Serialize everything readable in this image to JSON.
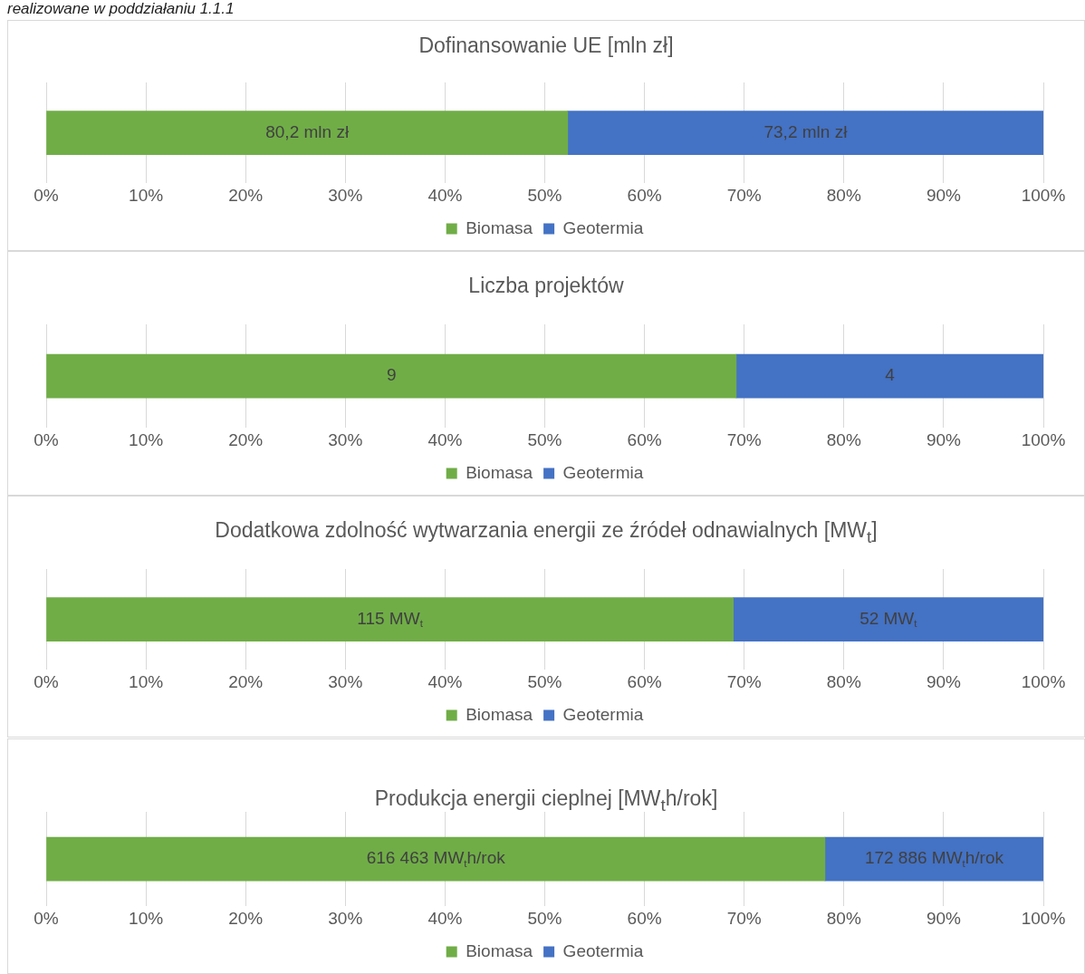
{
  "chart_data": [
    {
      "type": "bar",
      "title": "Dofinansowanie UE [mln zł]",
      "annotations": [
        "realizowane w poddziałaniu 1.1.1",
        "80,2 mln zł",
        "73,2 mln zł"
      ],
      "categories": [
        null
      ],
      "orientation": "horizontal",
      "stacked": true,
      "series": [
        {
          "name": "Biomasa",
          "color": "#70ad47",
          "values": [
            52.3
          ]
        },
        {
          "name": "Geotermia",
          "color": "#4472c4",
          "values": [
            47.7
          ]
        }
      ],
      "xlim": [
        0,
        100
      ],
      "xticks": [
        {
          "value": 0,
          "label": "0%"
        },
        {
          "value": 10,
          "label": "10%"
        },
        {
          "value": 20,
          "label": "20%"
        },
        {
          "value": 30,
          "label": "30%"
        },
        {
          "value": 40,
          "label": "40%"
        },
        {
          "value": 50,
          "label": "50%"
        },
        {
          "value": 60,
          "label": "60%"
        },
        {
          "value": 70,
          "label": "70%"
        },
        {
          "value": 80,
          "label": "80%"
        },
        {
          "value": 90,
          "label": "90%"
        },
        {
          "value": 100,
          "label": "100%"
        }
      ],
      "grid": "x",
      "legend": "bottom",
      "tick_labels": "x"
    },
    {
      "type": "bar",
      "title": "Liczba projektów",
      "annotations": [
        "9",
        "4"
      ],
      "categories": [
        null
      ],
      "orientation": "horizontal",
      "stacked": true,
      "series": [
        {
          "name": "Biomasa",
          "color": "#70ad47",
          "values": [
            69.2
          ]
        },
        {
          "name": "Geotermia",
          "color": "#4472c4",
          "values": [
            30.8
          ]
        }
      ],
      "xlim": [
        0,
        100
      ],
      "xticks": [
        {
          "value": 0,
          "label": "0%"
        },
        {
          "value": 10,
          "label": "10%"
        },
        {
          "value": 20,
          "label": "20%"
        },
        {
          "value": 30,
          "label": "30%"
        },
        {
          "value": 40,
          "label": "40%"
        },
        {
          "value": 50,
          "label": "50%"
        },
        {
          "value": 60,
          "label": "60%"
        },
        {
          "value": 70,
          "label": "70%"
        },
        {
          "value": 80,
          "label": "80%"
        },
        {
          "value": 90,
          "label": "90%"
        },
        {
          "value": 100,
          "label": "100%"
        }
      ],
      "grid": "x",
      "legend": "bottom",
      "tick_labels": "x"
    },
    {
      "type": "bar",
      "title": "Dodatkowa zdolność wytwarzania energii ze źródeł odnawialnych [MW$_{t}$]",
      "annotations": [
        "115 MW$_{t}$",
        "52 MW$_{t}$"
      ],
      "categories": [
        null
      ],
      "orientation": "horizontal",
      "stacked": true,
      "series": [
        {
          "name": "Biomasa",
          "color": "#70ad47",
          "values": [
            68.9
          ]
        },
        {
          "name": "Geotermia",
          "color": "#4472c4",
          "values": [
            31.1
          ]
        }
      ],
      "xlim": [
        0,
        100
      ],
      "xticks": [
        {
          "value": 0,
          "label": "0%"
        },
        {
          "value": 10,
          "label": "10%"
        },
        {
          "value": 20,
          "label": "20%"
        },
        {
          "value": 30,
          "label": "30%"
        },
        {
          "value": 40,
          "label": "40%"
        },
        {
          "value": 50,
          "label": "50%"
        },
        {
          "value": 60,
          "label": "60%"
        },
        {
          "value": 70,
          "label": "70%"
        },
        {
          "value": 80,
          "label": "80%"
        },
        {
          "value": 90,
          "label": "90%"
        },
        {
          "value": 100,
          "label": "100%"
        }
      ],
      "grid": "x",
      "legend": "bottom",
      "tick_labels": "x"
    },
    {
      "type": "bar",
      "title": "Produkcja energii cieplnej [MW$_{t}$h/rok]",
      "annotations": [
        "616 463 MW$_{t}$h/rok",
        "172 886 MW$_{t}$h/rok"
      ],
      "categories": [
        null
      ],
      "orientation": "horizontal",
      "stacked": true,
      "series": [
        {
          "name": "Biomasa",
          "color": "#70ad47",
          "values": [
            78.1
          ]
        },
        {
          "name": "Geotermia",
          "color": "#4472c4",
          "values": [
            21.9
          ]
        }
      ],
      "xlim": [
        0,
        100
      ],
      "xticks": [
        {
          "value": 0,
          "label": "0%"
        },
        {
          "value": 10,
          "label": "10%"
        },
        {
          "value": 20,
          "label": "20%"
        },
        {
          "value": 30,
          "label": "30%"
        },
        {
          "value": 40,
          "label": "40%"
        },
        {
          "value": 50,
          "label": "50%"
        },
        {
          "value": 60,
          "label": "60%"
        },
        {
          "value": 70,
          "label": "70%"
        },
        {
          "value": 80,
          "label": "80%"
        },
        {
          "value": 90,
          "label": "90%"
        },
        {
          "value": 100,
          "label": "100%"
        }
      ],
      "grid": "x",
      "legend": "bottom",
      "tick_labels": "x"
    }
  ]
}
